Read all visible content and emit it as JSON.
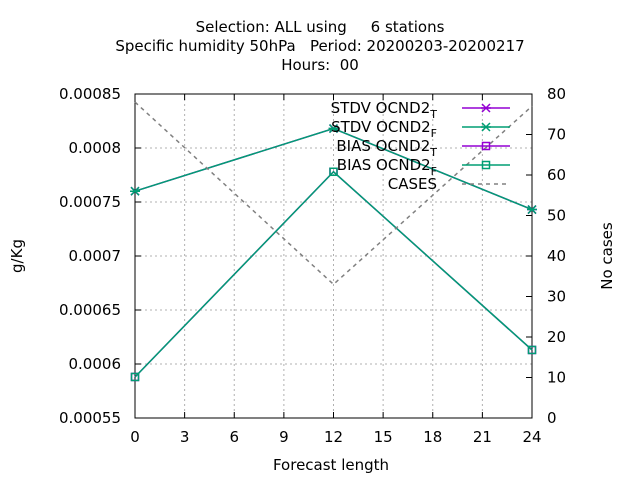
{
  "title_lines": [
    "Selection: ALL using     6 stations",
    "Specific humidity 50hPa   Period: 20200203-20200217",
    "Hours:  00"
  ],
  "chart_data": {
    "type": "line",
    "xlabel": "Forecast length",
    "ylabel": "g/Kg",
    "y2label": "No cases",
    "x": [
      0,
      12,
      24
    ],
    "xlim": [
      0,
      24
    ],
    "xticks": [
      "0",
      "3",
      "6",
      "9",
      "12",
      "15",
      "18",
      "21",
      "24"
    ],
    "ylim": [
      0.00055,
      0.00085
    ],
    "yticks": [
      "0.00055",
      "0.0006",
      "0.00065",
      "0.0007",
      "0.00075",
      "0.0008",
      "0.00085"
    ],
    "y2lim": [
      0,
      80
    ],
    "y2ticks": [
      "0",
      "10",
      "20",
      "30",
      "40",
      "50",
      "60",
      "70",
      "80"
    ],
    "grid": true,
    "legend_position": "top-right",
    "series": [
      {
        "name": "STDV OCND2",
        "subscript": "T",
        "axis": "y",
        "color": "#9400d3",
        "marker": "x-star",
        "dash": false,
        "values": [
          0.00076,
          0.000818,
          0.000743
        ]
      },
      {
        "name": "STDV OCND2",
        "subscript": "F",
        "axis": "y",
        "color": "#009e73",
        "marker": "x-star",
        "dash": false,
        "values": [
          0.00076,
          0.000818,
          0.000743
        ]
      },
      {
        "name": "BIAS OCND2",
        "subscript": "T",
        "axis": "y",
        "color": "#9400d3",
        "marker": "square",
        "dash": false,
        "values": [
          0.000588,
          0.000778,
          0.000613
        ]
      },
      {
        "name": "BIAS OCND2",
        "subscript": "F",
        "axis": "y",
        "color": "#009e73",
        "marker": "square",
        "dash": false,
        "values": [
          0.000588,
          0.000778,
          0.000613
        ]
      },
      {
        "name": "CASES",
        "subscript": "",
        "axis": "y2",
        "color": "#808080",
        "marker": "none",
        "dash": true,
        "values": [
          78,
          33,
          77
        ]
      }
    ]
  }
}
